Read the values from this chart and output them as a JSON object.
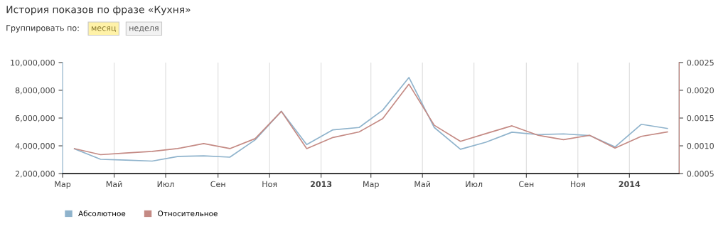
{
  "chart_data": {
    "type": "line",
    "title": "История показов по фразе «Кухня»",
    "annotations": [
      "Группировать по:",
      "месяц",
      "неделя"
    ],
    "x": [
      "2012-03-15",
      "2012-04-15",
      "2012-05-15",
      "2012-06-15",
      "2012-07-15",
      "2012-08-15",
      "2012-09-15",
      "2012-10-15",
      "2012-11-15",
      "2012-12-15",
      "2013-01-15",
      "2013-02-15",
      "2013-03-15",
      "2013-04-15",
      "2013-05-15",
      "2013-06-15",
      "2013-07-15",
      "2013-08-15",
      "2013-09-15",
      "2013-10-15",
      "2013-11-15",
      "2013-12-15",
      "2014-01-15",
      "2014-02-15"
    ],
    "series": [
      {
        "name": "Абсолютное",
        "color": "#8fb3cc",
        "values": [
          3780000,
          3030000,
          2970000,
          2900000,
          3230000,
          3280000,
          3180000,
          4430000,
          6490000,
          4090000,
          5150000,
          5320000,
          6570000,
          8920000,
          5320000,
          3750000,
          4260000,
          4980000,
          4810000,
          4860000,
          4740000,
          3920000,
          5550000,
          5250000
        ]
      },
      {
        "name": "Относительное",
        "color": "#c48a84",
        "axis": "y2",
        "values": [
          0.00095,
          0.00084,
          0.00087,
          0.0009,
          0.00095,
          0.00104,
          0.00095,
          0.00113,
          0.00162,
          0.00095,
          0.00115,
          0.00125,
          0.00149,
          0.00211,
          0.00137,
          0.00108,
          0.00122,
          0.00136,
          0.00119,
          0.00111,
          0.00119,
          0.00096,
          0.00117,
          0.00125
        ]
      }
    ],
    "xlim": [
      "2012-03-01",
      "2014-03-01"
    ],
    "xticks": [
      {
        "value": "2012-03-01",
        "label": "Мар"
      },
      {
        "value": "2012-05-01",
        "label": "Май"
      },
      {
        "value": "2012-07-01",
        "label": "Июл"
      },
      {
        "value": "2012-09-01",
        "label": "Сен"
      },
      {
        "value": "2012-11-01",
        "label": "Ноя"
      },
      {
        "value": "2013-01-01",
        "label": "2013"
      },
      {
        "value": "2013-03-01",
        "label": "Мар"
      },
      {
        "value": "2013-05-01",
        "label": "Май"
      },
      {
        "value": "2013-07-01",
        "label": "Июл"
      },
      {
        "value": "2013-09-01",
        "label": "Сен"
      },
      {
        "value": "2013-11-01",
        "label": "Ноя"
      },
      {
        "value": "2014-01-01",
        "label": "2014"
      }
    ],
    "ylim": [
      2000000,
      10000000
    ],
    "yticks": [
      {
        "value": 2000000,
        "label": "2,000,000"
      },
      {
        "value": 4000000,
        "label": "4,000,000"
      },
      {
        "value": 6000000,
        "label": "6,000,000"
      },
      {
        "value": 8000000,
        "label": "8,000,000"
      },
      {
        "value": 10000000,
        "label": "10,000,000"
      }
    ],
    "y2lim": [
      0.0005,
      0.0025
    ],
    "y2ticks": [
      {
        "value": 0.0005,
        "label": "0.0005"
      },
      {
        "value": 0.001,
        "label": "0.0010"
      },
      {
        "value": 0.0015,
        "label": "0.0015"
      },
      {
        "value": 0.002,
        "label": "0.0020"
      },
      {
        "value": 0.0025,
        "label": "0.0025"
      }
    ],
    "grid": "x",
    "legend": "bottom left"
  }
}
